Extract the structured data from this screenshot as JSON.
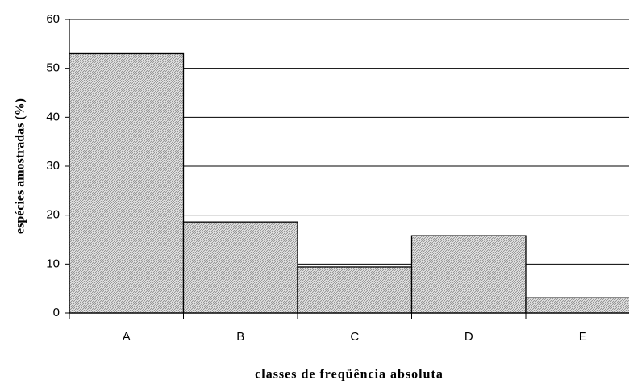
{
  "chart_data": {
    "type": "bar",
    "x_label": "classes de freqüência absoluta",
    "y_label": "espécies amostradas (%)",
    "categories": [
      "A",
      "B",
      "C",
      "D",
      "E"
    ],
    "values": [
      53,
      18.6,
      9.4,
      15.8,
      3.1
    ],
    "color": "#8a8a8a",
    "ylim": [
      0,
      60
    ],
    "yticks": [
      0,
      10,
      20,
      30,
      40,
      50,
      60
    ],
    "grid": true
  }
}
